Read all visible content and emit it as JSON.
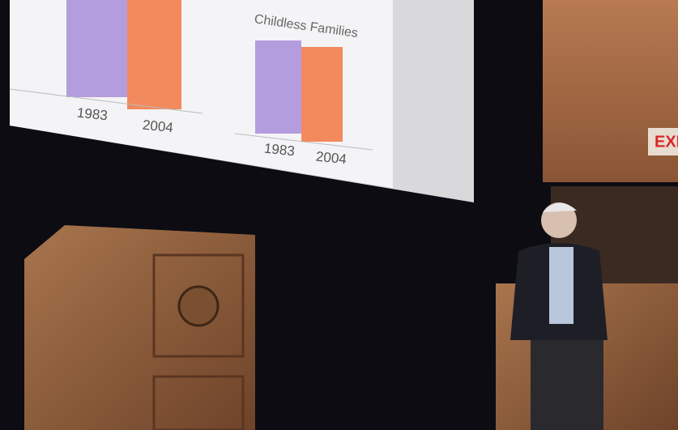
{
  "slide": {
    "groups": [
      {
        "labels": [
          "1983",
          "2004"
        ]
      },
      {
        "title": "Childless Families",
        "labels": [
          "1983",
          "2004"
        ]
      }
    ]
  },
  "exit_sign": "EXI"
}
